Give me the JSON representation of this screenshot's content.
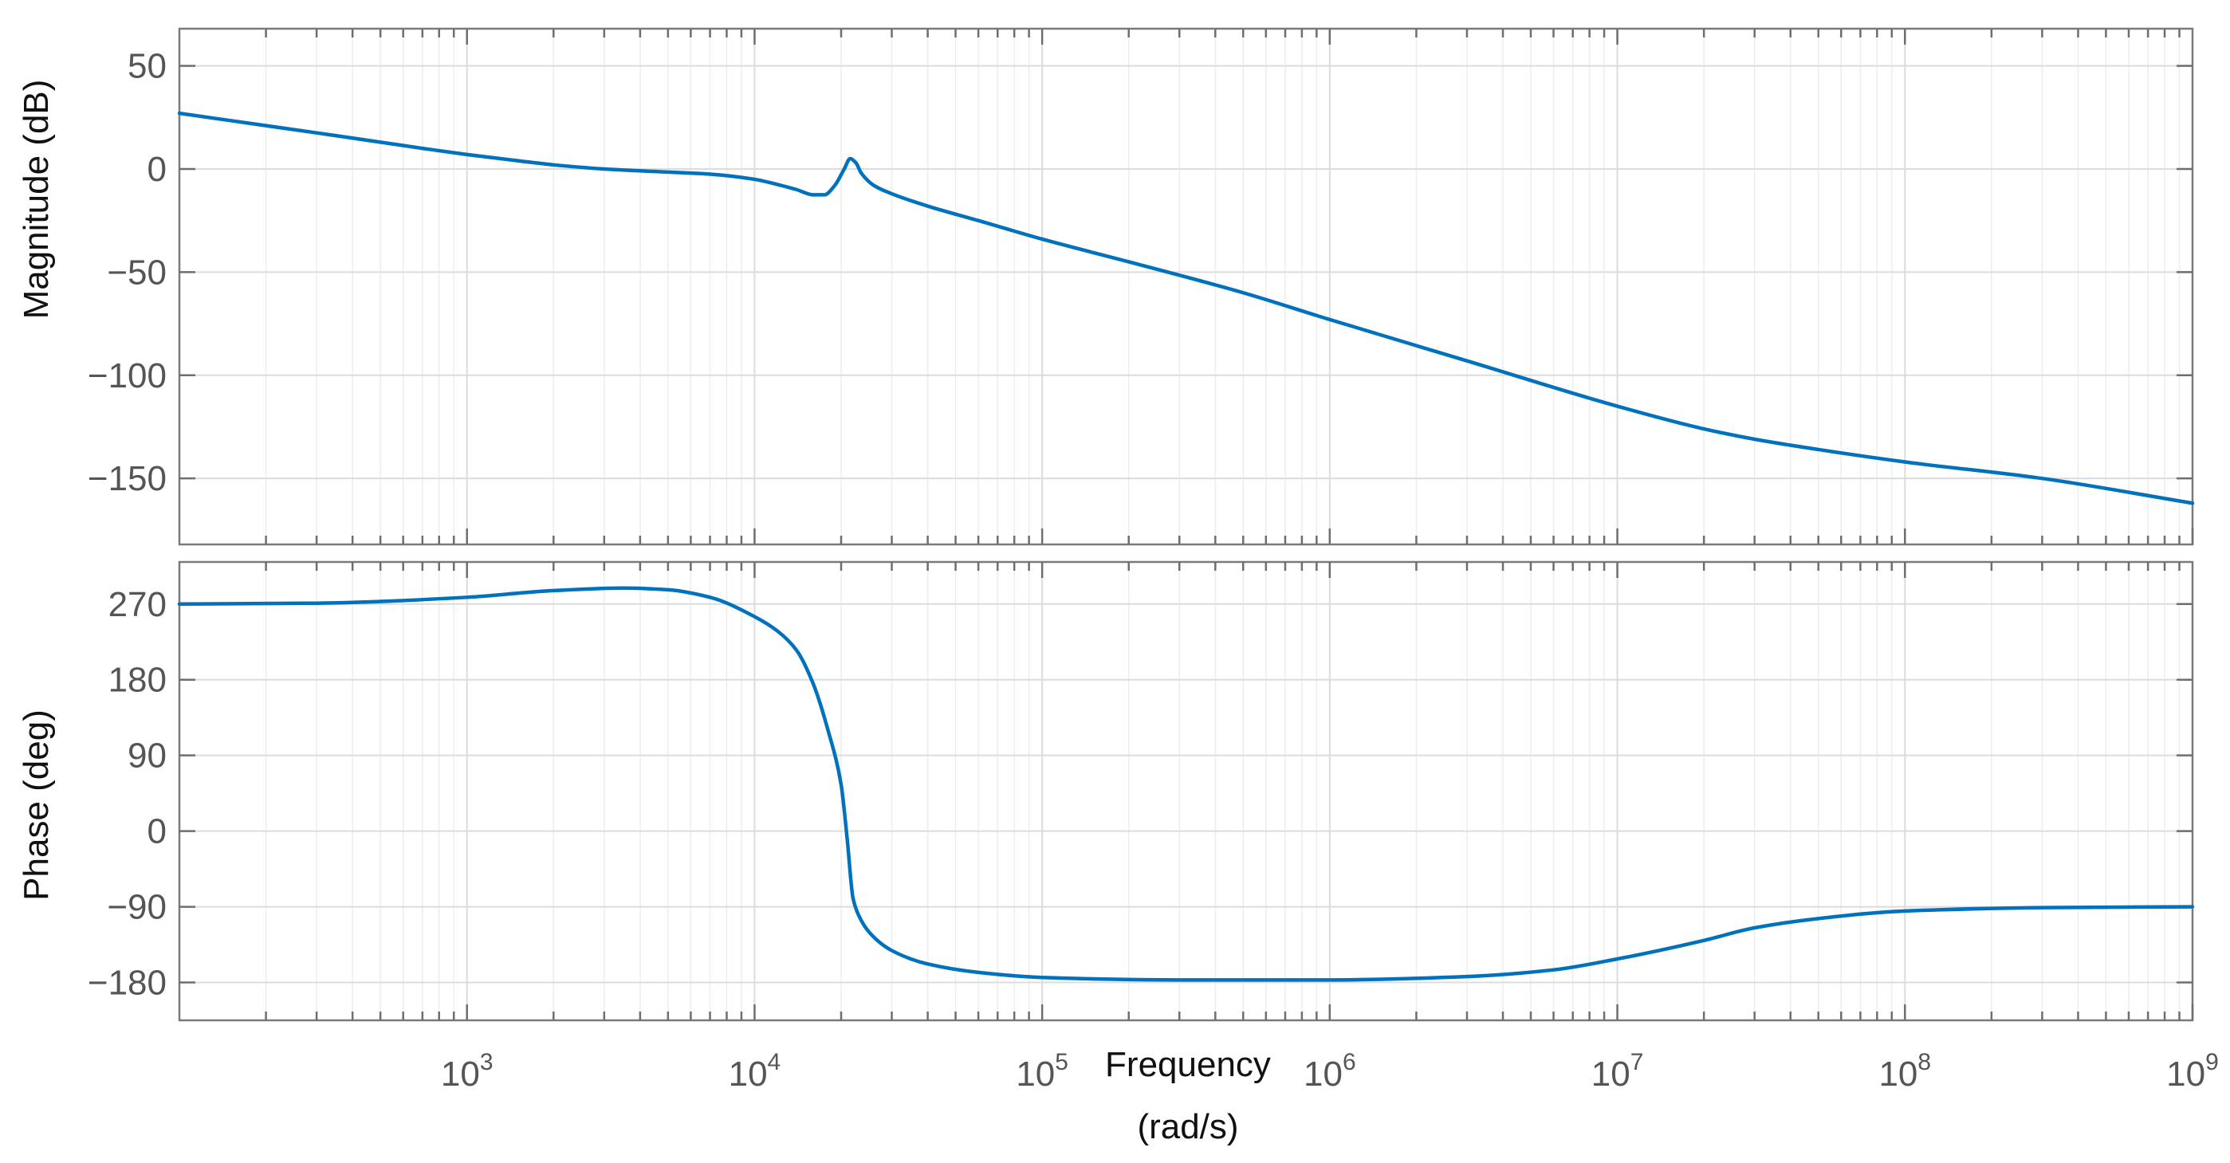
{
  "chart_data": [
    {
      "type": "line",
      "ylabel": "Magnitude (dB)",
      "xscale": "log",
      "xlim": [
        100,
        1000000000
      ],
      "ylim": [
        -182,
        68
      ],
      "yticks": [
        50,
        0,
        -50,
        -100,
        -150
      ],
      "ytick_labels": [
        "50",
        "0",
        "−50",
        "−100",
        "−150"
      ],
      "grid": true,
      "series": [
        {
          "color": "#0072BD",
          "points": [
            [
              100,
              27
            ],
            [
              150,
              23.5
            ],
            [
              200,
              21
            ],
            [
              300,
              17.5
            ],
            [
              500,
              13
            ],
            [
              700,
              10
            ],
            [
              1000,
              7
            ],
            [
              1500,
              4
            ],
            [
              2000,
              2
            ],
            [
              3000,
              0
            ],
            [
              5000,
              -1.5
            ],
            [
              7000,
              -2.5
            ],
            [
              10000,
              -5
            ],
            [
              12000,
              -7.5
            ],
            [
              14000,
              -10
            ],
            [
              16000,
              -12.5
            ],
            [
              17500,
              -12.5
            ],
            [
              19000,
              -8
            ],
            [
              20500,
              0
            ],
            [
              21500,
              5
            ],
            [
              22500,
              3
            ],
            [
              23500,
              -2
            ],
            [
              26000,
              -8
            ],
            [
              30000,
              -12
            ],
            [
              40000,
              -18
            ],
            [
              60000,
              -25
            ],
            [
              100000,
              -34
            ],
            [
              200000,
              -45
            ],
            [
              500000,
              -60
            ],
            [
              1000000,
              -73
            ],
            [
              3000000,
              -93
            ],
            [
              10000000,
              -115
            ],
            [
              20000000,
              -126
            ],
            [
              30000000,
              -131
            ],
            [
              50000000,
              -136
            ],
            [
              100000000,
              -142
            ],
            [
              300000000,
              -150
            ],
            [
              1000000000,
              -162
            ]
          ]
        }
      ]
    },
    {
      "type": "line",
      "xlabel": "Frequency (rad/s)",
      "ylabel": "Phase (deg)",
      "xscale": "log",
      "xlim": [
        100,
        1000000000
      ],
      "ylim": [
        -225,
        320
      ],
      "xticks": [
        1000,
        10000,
        100000,
        1000000,
        10000000,
        100000000,
        1000000000
      ],
      "xtick_labels": [
        {
          "base": "10",
          "exp": "3"
        },
        {
          "base": "10",
          "exp": "4"
        },
        {
          "base": "10",
          "exp": "5"
        },
        {
          "base": "10",
          "exp": "6"
        },
        {
          "base": "10",
          "exp": "7"
        },
        {
          "base": "10",
          "exp": "8"
        },
        {
          "base": "10",
          "exp": "9"
        }
      ],
      "yticks": [
        270,
        180,
        90,
        0,
        -90,
        -180
      ],
      "ytick_labels": [
        "270",
        "180",
        "90",
        "0",
        "−90",
        "−180"
      ],
      "grid": true,
      "series": [
        {
          "color": "#0072BD",
          "points": [
            [
              100,
              270
            ],
            [
              300,
              271
            ],
            [
              1000,
              278
            ],
            [
              2000,
              286
            ],
            [
              3500,
              289
            ],
            [
              5000,
              287
            ],
            [
              7000,
              278
            ],
            [
              10000,
              255
            ],
            [
              12000,
              238
            ],
            [
              14000,
              215
            ],
            [
              16000,
              175
            ],
            [
              18000,
              120
            ],
            [
              20000,
              55
            ],
            [
              21000,
              -10
            ],
            [
              22000,
              -80
            ],
            [
              23000,
              -100
            ],
            [
              25000,
              -120
            ],
            [
              30000,
              -142
            ],
            [
              40000,
              -158
            ],
            [
              60000,
              -168
            ],
            [
              100000,
              -174
            ],
            [
              300000,
              -177
            ],
            [
              1000000,
              -177
            ],
            [
              3000000,
              -173
            ],
            [
              6000000,
              -165
            ],
            [
              10000000,
              -152
            ],
            [
              20000000,
              -130
            ],
            [
              30000000,
              -115
            ],
            [
              50000000,
              -104
            ],
            [
              100000000,
              -95
            ],
            [
              300000000,
              -91
            ],
            [
              1000000000,
              -90
            ]
          ]
        }
      ]
    }
  ]
}
